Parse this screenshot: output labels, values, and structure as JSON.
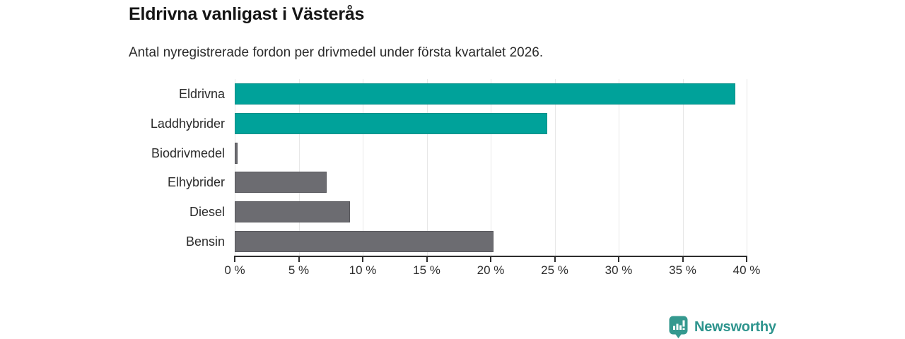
{
  "header": {
    "title": "Eldrivna vanligast i Västerås",
    "subtitle": "Antal nyregistrerade fordon per drivmedel under första kvartalet 2026."
  },
  "chart_data": {
    "type": "bar",
    "orientation": "horizontal",
    "title": "Eldrivna vanligast i Västerås",
    "subtitle": "Antal nyregistrerade fordon per drivmedel under första kvartalet 2026.",
    "categories": [
      "Eldrivna",
      "Laddhybrider",
      "Biodrivmedel",
      "Elhybrider",
      "Diesel",
      "Bensin"
    ],
    "values": [
      39.1,
      24.4,
      0.2,
      7.2,
      9.0,
      20.2
    ],
    "unit": "%",
    "bar_colors": [
      "#00a29a",
      "#00a29a",
      "#6c6c71",
      "#6c6c71",
      "#6c6c71",
      "#6c6c71"
    ],
    "bar_border_colors": [
      "#089089",
      "#089089",
      "#58585d",
      "#58585d",
      "#58585d",
      "#58585d"
    ],
    "xlim": [
      0,
      40
    ],
    "x_ticks": [
      0,
      5,
      10,
      15,
      20,
      25,
      30,
      35,
      40
    ],
    "x_tick_labels": [
      "0 %",
      "5 %",
      "10 %",
      "15 %",
      "20 %",
      "25 %",
      "30 %",
      "35 %",
      "40 %"
    ],
    "grid": "vertical-only",
    "legend": "none",
    "xlabel": "",
    "ylabel": ""
  },
  "colors": {
    "highlight_teal": "#00a29a",
    "neutral_gray": "#6c6c71",
    "gridline": "#e7e7e7",
    "axis": "#2e2e2e",
    "logo_bubble": "#35998f",
    "logo_text": "#2d948d"
  },
  "footer": {
    "brand": "Newsworthy",
    "brand_icon": "newsworthy-logo-icon"
  }
}
